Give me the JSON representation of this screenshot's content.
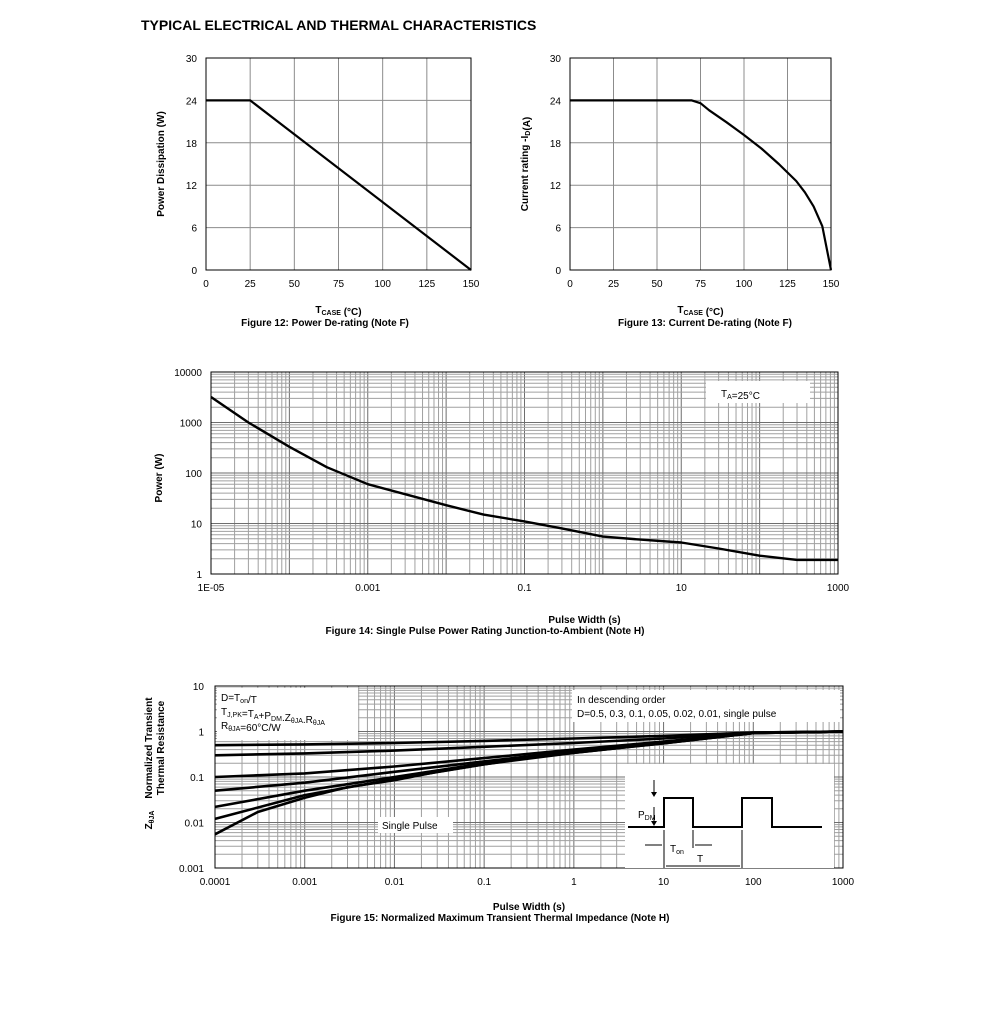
{
  "page_heading": "TYPICAL ELECTRICAL AND THERMAL CHARACTERISTICS",
  "chart_data": [
    {
      "id": "fig12",
      "type": "line",
      "caption": "Figure 12: Power De-rating (Note F)",
      "xlabel_main": "T",
      "xlabel_sub": "CASE",
      "xlabel_unit": " (°C)",
      "ylabel": "Power Dissipation (W)",
      "xlim": [
        0,
        150
      ],
      "ylim": [
        0,
        30
      ],
      "x_ticks": [
        0,
        25,
        50,
        75,
        100,
        125,
        150
      ],
      "y_ticks": [
        0,
        6,
        12,
        18,
        24,
        30
      ],
      "grid": true,
      "series": [
        {
          "x": [
            0,
            25,
            150
          ],
          "y": [
            24,
            24,
            0
          ]
        }
      ]
    },
    {
      "id": "fig13",
      "type": "line",
      "caption": "Figure 13: Current De-rating (Note F)",
      "xlabel_main": "T",
      "xlabel_sub": "CASE",
      "xlabel_unit": " (°C)",
      "ylabel_pre": "Current rating -I",
      "ylabel_sub": "D",
      "ylabel_post": "(A)",
      "xlim": [
        0,
        150
      ],
      "ylim": [
        0,
        30
      ],
      "x_ticks": [
        0,
        25,
        50,
        75,
        100,
        125,
        150
      ],
      "y_ticks": [
        0,
        6,
        12,
        18,
        24,
        30
      ],
      "grid": true,
      "series": [
        {
          "x": [
            0,
            70,
            75,
            80,
            90,
            100,
            110,
            120,
            130,
            135,
            140,
            145,
            150
          ],
          "y": [
            24,
            24,
            23.6,
            22.6,
            20.9,
            19.1,
            17.2,
            15,
            12.6,
            11,
            9,
            6.2,
            0
          ]
        }
      ]
    },
    {
      "id": "fig14",
      "type": "line",
      "caption": "Figure 14: Single Pulse Power Rating Junction-to-Ambient (Note H)",
      "xlabel": "Pulse Width (s)",
      "ylabel": "Power (W)",
      "xscale": "log",
      "yscale": "log",
      "xlim": [
        1e-05,
        1000
      ],
      "ylim": [
        1,
        10000
      ],
      "x_tick_labels": [
        "1E-05",
        "0.001",
        "0.1",
        "10",
        "1000"
      ],
      "y_tick_labels": [
        "1",
        "10",
        "100",
        "1000",
        "10000"
      ],
      "grid": true,
      "annotation": {
        "main": "T",
        "sub": "A",
        "rest": "=25°C"
      },
      "series": [
        {
          "x": [
            1e-05,
            3e-05,
            0.0001,
            0.0003,
            0.001,
            0.003,
            0.01,
            0.03,
            0.1,
            0.3,
            1,
            3,
            10,
            30,
            100,
            300,
            1000
          ],
          "y": [
            3200,
            1000,
            330,
            130,
            60,
            38,
            23,
            15,
            11,
            8,
            5.5,
            4.8,
            4.2,
            3.2,
            2.3,
            1.9,
            1.9
          ]
        }
      ]
    },
    {
      "id": "fig15",
      "type": "line",
      "caption": "Figure 15: Normalized Maximum Transient Thermal Impedance (Note H)",
      "xlabel": "Pulse Width (s)",
      "ylabel_line1": "Normalized Transient",
      "ylabel_line2": "Thermal Resistance",
      "ylabel_symbol": "Z",
      "ylabel_symbol_sub": "θJA",
      "xscale": "log",
      "yscale": "log",
      "xlim": [
        0.0001,
        1000
      ],
      "ylim": [
        0.001,
        10
      ],
      "x_tick_labels": [
        "0.0001",
        "0.001",
        "0.01",
        "0.1",
        "1",
        "10",
        "100",
        "1000"
      ],
      "y_tick_labels": [
        "0.001",
        "0.01",
        "0.1",
        "1",
        "10"
      ],
      "grid": true,
      "legend_left": [
        "D=T",
        "T",
        "R"
      ],
      "legend_left_lines": [
        {
          "parts": [
            [
              "D=T",
              ""
            ],
            [
              "on",
              "sub"
            ],
            [
              "/T",
              ""
            ]
          ]
        },
        {
          "parts": [
            [
              "T",
              ""
            ],
            [
              "J,PK",
              "sub"
            ],
            [
              "=T",
              ""
            ],
            [
              "A",
              "sub"
            ],
            [
              "+P",
              ""
            ],
            [
              "DM",
              "sub"
            ],
            [
              ".Z",
              ""
            ],
            [
              "θJA",
              "sub"
            ],
            [
              ".R",
              ""
            ],
            [
              "θJA",
              "sub"
            ]
          ]
        },
        {
          "parts": [
            [
              "R",
              ""
            ],
            [
              "θJA",
              "sub"
            ],
            [
              "=60°C/W",
              ""
            ]
          ]
        }
      ],
      "legend_right": [
        "In descending order",
        "D=0.5, 0.3, 0.1, 0.05, 0.02, 0.01, single pulse"
      ],
      "single_pulse_label": "Single Pulse",
      "inset": {
        "pdm": "P",
        "pdm_sub": "DM",
        "ton": "T",
        "ton_sub": "on",
        "t": "T"
      },
      "series": [
        {
          "name": "D=0.5",
          "x": [
            0.0001,
            0.001,
            0.01,
            0.1,
            1,
            10,
            100,
            1000
          ],
          "y": [
            0.5,
            0.52,
            0.56,
            0.62,
            0.7,
            0.8,
            0.95,
            1.0
          ]
        },
        {
          "name": "D=0.3",
          "x": [
            0.0001,
            0.001,
            0.01,
            0.1,
            1,
            10,
            100,
            1000
          ],
          "y": [
            0.3,
            0.33,
            0.38,
            0.46,
            0.56,
            0.7,
            0.95,
            1.0
          ]
        },
        {
          "name": "D=0.1",
          "x": [
            0.0001,
            0.001,
            0.01,
            0.1,
            1,
            10,
            100,
            1000
          ],
          "y": [
            0.1,
            0.12,
            0.17,
            0.26,
            0.4,
            0.6,
            0.93,
            1.0
          ]
        },
        {
          "name": "D=0.05",
          "x": [
            0.0001,
            0.001,
            0.01,
            0.1,
            1,
            10,
            100,
            1000
          ],
          "y": [
            0.05,
            0.075,
            0.13,
            0.22,
            0.37,
            0.58,
            0.93,
            1.0
          ]
        },
        {
          "name": "D=0.02",
          "x": [
            0.0001,
            0.001,
            0.01,
            0.1,
            1,
            10,
            100,
            1000
          ],
          "y": [
            0.022,
            0.05,
            0.1,
            0.2,
            0.35,
            0.56,
            0.92,
            1.0
          ]
        },
        {
          "name": "D=0.01",
          "x": [
            0.0001,
            0.001,
            0.01,
            0.1,
            1,
            10,
            100,
            1000
          ],
          "y": [
            0.012,
            0.04,
            0.09,
            0.19,
            0.34,
            0.55,
            0.92,
            1.0
          ]
        },
        {
          "name": "single pulse",
          "x": [
            0.0001,
            0.0003,
            0.001,
            0.003,
            0.01,
            0.03,
            0.1,
            0.3,
            1,
            3,
            10,
            100,
            1000
          ],
          "y": [
            0.0055,
            0.017,
            0.035,
            0.06,
            0.085,
            0.13,
            0.19,
            0.26,
            0.34,
            0.43,
            0.55,
            0.92,
            1.0
          ]
        }
      ]
    }
  ]
}
